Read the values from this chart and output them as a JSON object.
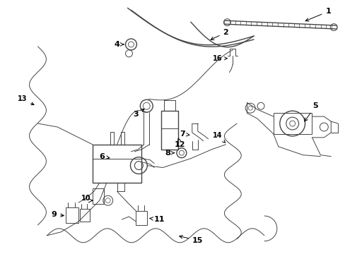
{
  "background_color": "#ffffff",
  "line_color": "#444444",
  "figsize": [
    4.89,
    3.6
  ],
  "dpi": 100
}
